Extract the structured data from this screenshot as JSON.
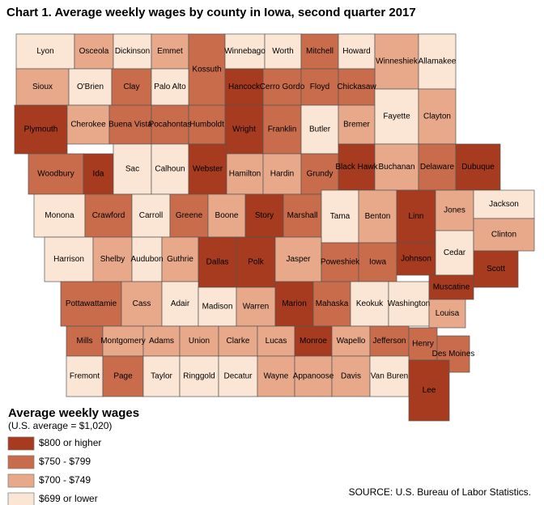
{
  "title": "Chart 1. Average weekly wages by county in Iowa, second quarter 2017",
  "legend": {
    "title": "Average weekly wages",
    "subtitle": "(U.S. average = $1,020)",
    "items": [
      {
        "label": "$800 or higher",
        "color": "#a63b1f"
      },
      {
        "label": "$750 - $799",
        "color": "#c96c4c"
      },
      {
        "label": "$700 - $749",
        "color": "#e8a98b"
      },
      {
        "label": "$699 or lower",
        "color": "#fbe6d5"
      }
    ]
  },
  "counties": [
    {
      "name": "Lyon",
      "class": 3
    },
    {
      "name": "Osceola",
      "class": 2
    },
    {
      "name": "Dickinson",
      "class": 3
    },
    {
      "name": "Emmet",
      "class": 2
    },
    {
      "name": "Kossuth",
      "class": 1
    },
    {
      "name": "Winnebago",
      "class": 3
    },
    {
      "name": "Worth",
      "class": 3
    },
    {
      "name": "Mitchell",
      "class": 1
    },
    {
      "name": "Howard",
      "class": 3
    },
    {
      "name": "Winneshiek",
      "class": 2
    },
    {
      "name": "Allamakee",
      "class": 3
    },
    {
      "name": "Sioux",
      "class": 2
    },
    {
      "name": "O'Brien",
      "class": 3
    },
    {
      "name": "Clay",
      "class": 1
    },
    {
      "name": "Palo Alto",
      "class": 3
    },
    {
      "name": "Hancock",
      "class": 0
    },
    {
      "name": "Cerro Gordo",
      "class": 1
    },
    {
      "name": "Floyd",
      "class": 1
    },
    {
      "name": "Chickasaw",
      "class": 1
    },
    {
      "name": "Plymouth",
      "class": 0
    },
    {
      "name": "Cherokee",
      "class": 2
    },
    {
      "name": "Buena Vista",
      "class": 1
    },
    {
      "name": "Pocahontas",
      "class": 1
    },
    {
      "name": "Humboldt",
      "class": 1
    },
    {
      "name": "Wright",
      "class": 0
    },
    {
      "name": "Franklin",
      "class": 1
    },
    {
      "name": "Butler",
      "class": 3
    },
    {
      "name": "Bremer",
      "class": 2
    },
    {
      "name": "Fayette",
      "class": 3
    },
    {
      "name": "Clayton",
      "class": 2
    },
    {
      "name": "Woodbury",
      "class": 1
    },
    {
      "name": "Ida",
      "class": 0
    },
    {
      "name": "Sac",
      "class": 3
    },
    {
      "name": "Calhoun",
      "class": 3
    },
    {
      "name": "Webster",
      "class": 0
    },
    {
      "name": "Hamilton",
      "class": 2
    },
    {
      "name": "Hardin",
      "class": 2
    },
    {
      "name": "Grundy",
      "class": 1
    },
    {
      "name": "Black Hawk",
      "class": 0
    },
    {
      "name": "Buchanan",
      "class": 2
    },
    {
      "name": "Delaware",
      "class": 1
    },
    {
      "name": "Dubuque",
      "class": 0
    },
    {
      "name": "Monona",
      "class": 3
    },
    {
      "name": "Crawford",
      "class": 1
    },
    {
      "name": "Carroll",
      "class": 3
    },
    {
      "name": "Greene",
      "class": 1
    },
    {
      "name": "Boone",
      "class": 2
    },
    {
      "name": "Story",
      "class": 0
    },
    {
      "name": "Marshall",
      "class": 1
    },
    {
      "name": "Tama",
      "class": 3
    },
    {
      "name": "Benton",
      "class": 2
    },
    {
      "name": "Linn",
      "class": 0
    },
    {
      "name": "Jones",
      "class": 2
    },
    {
      "name": "Jackson",
      "class": 3
    },
    {
      "name": "Harrison",
      "class": 3
    },
    {
      "name": "Shelby",
      "class": 2
    },
    {
      "name": "Audubon",
      "class": 3
    },
    {
      "name": "Guthrie",
      "class": 2
    },
    {
      "name": "Dallas",
      "class": 0
    },
    {
      "name": "Polk",
      "class": 0
    },
    {
      "name": "Jasper",
      "class": 2
    },
    {
      "name": "Poweshiek",
      "class": 1
    },
    {
      "name": "Iowa",
      "class": 1
    },
    {
      "name": "Johnson",
      "class": 0
    },
    {
      "name": "Cedar",
      "class": 3
    },
    {
      "name": "Clinton",
      "class": 2
    },
    {
      "name": "Scott",
      "class": 0
    },
    {
      "name": "Pottawattamie",
      "class": 1
    },
    {
      "name": "Cass",
      "class": 2
    },
    {
      "name": "Adair",
      "class": 3
    },
    {
      "name": "Madison",
      "class": 3
    },
    {
      "name": "Warren",
      "class": 2
    },
    {
      "name": "Marion",
      "class": 0
    },
    {
      "name": "Mahaska",
      "class": 1
    },
    {
      "name": "Keokuk",
      "class": 3
    },
    {
      "name": "Washington",
      "class": 3
    },
    {
      "name": "Muscatine",
      "class": 0
    },
    {
      "name": "Louisa",
      "class": 2
    },
    {
      "name": "Mills",
      "class": 1
    },
    {
      "name": "Montgomery",
      "class": 2
    },
    {
      "name": "Adams",
      "class": 2
    },
    {
      "name": "Union",
      "class": 2
    },
    {
      "name": "Clarke",
      "class": 2
    },
    {
      "name": "Lucas",
      "class": 2
    },
    {
      "name": "Monroe",
      "class": 0
    },
    {
      "name": "Wapello",
      "class": 2
    },
    {
      "name": "Jefferson",
      "class": 1
    },
    {
      "name": "Henry",
      "class": 1
    },
    {
      "name": "Des Moines",
      "class": 1
    },
    {
      "name": "Fremont",
      "class": 3
    },
    {
      "name": "Page",
      "class": 1
    },
    {
      "name": "Taylor",
      "class": 3
    },
    {
      "name": "Ringgold",
      "class": 3
    },
    {
      "name": "Decatur",
      "class": 3
    },
    {
      "name": "Wayne",
      "class": 2
    },
    {
      "name": "Appanoose",
      "class": 2
    },
    {
      "name": "Davis",
      "class": 2
    },
    {
      "name": "Van Buren",
      "class": 3
    },
    {
      "name": "Lee",
      "class": 0
    }
  ],
  "source": "SOURCE: U.S. Bureau of Labor Statistics."
}
